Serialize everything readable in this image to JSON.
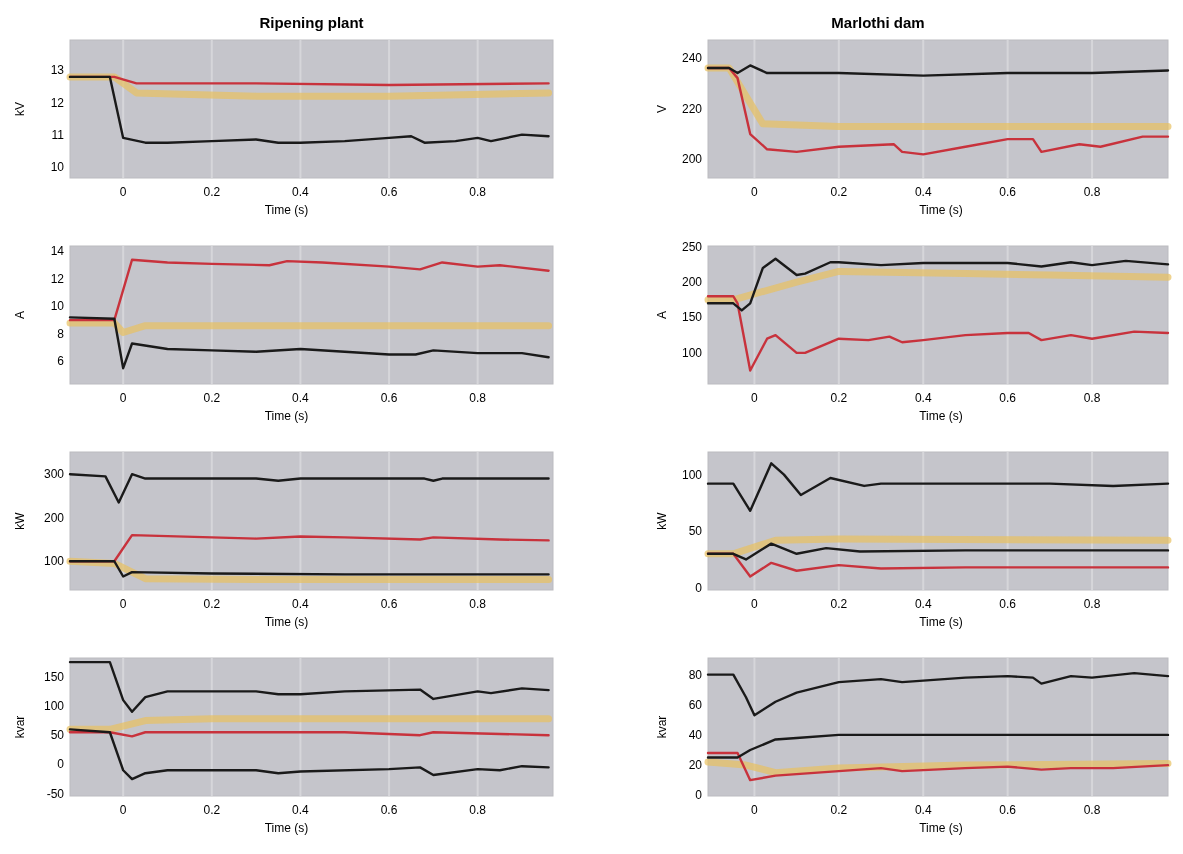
{
  "chart_data": [
    {
      "type": "line",
      "title": "Ripening plant",
      "xlabel": "Time (s)",
      "ylabel": "kV",
      "xlim": [
        -0.12,
        0.97
      ],
      "xticks": [
        0,
        0.2,
        0.4,
        0.6,
        0.8
      ],
      "ylim": [
        9.65,
        13.95
      ],
      "yticks": [
        10,
        11,
        12,
        13
      ],
      "grid": "x",
      "series": [
        {
          "color": "#e8c060",
          "x": [
            -0.12,
            -0.02,
            0.03,
            0.3,
            0.6,
            0.96
          ],
          "values": [
            12.8,
            12.8,
            12.3,
            12.2,
            12.2,
            12.3
          ]
        },
        {
          "color": "#c8323c",
          "x": [
            -0.12,
            -0.02,
            0.03,
            0.3,
            0.6,
            0.96
          ],
          "values": [
            12.8,
            12.8,
            12.6,
            12.6,
            12.55,
            12.6
          ]
        },
        {
          "color": "#1a1a1a",
          "x": [
            -0.12,
            -0.03,
            0,
            0.05,
            0.1,
            0.2,
            0.3,
            0.35,
            0.4,
            0.5,
            0.6,
            0.65,
            0.68,
            0.75,
            0.8,
            0.83,
            0.9,
            0.96
          ],
          "values": [
            12.8,
            12.8,
            10.9,
            10.75,
            10.75,
            10.8,
            10.85,
            10.75,
            10.75,
            10.8,
            10.9,
            10.95,
            10.75,
            10.8,
            10.9,
            10.8,
            11.0,
            10.95
          ]
        }
      ]
    },
    {
      "type": "line",
      "title": "Marlothi dam",
      "xlabel": "Time (s)",
      "ylabel": "V",
      "xlim": [
        -0.11,
        0.98
      ],
      "xticks": [
        0,
        0.2,
        0.4,
        0.6,
        0.8
      ],
      "ylim": [
        192.7,
        247
      ],
      "yticks": [
        200,
        220,
        240
      ],
      "grid": "x",
      "series": [
        {
          "color": "#e8c060",
          "x": [
            -0.11,
            -0.06,
            0.02,
            0.2,
            0.98
          ],
          "values": [
            236,
            236,
            214,
            213,
            213
          ]
        },
        {
          "color": "#c8323c",
          "x": [
            -0.11,
            -0.06,
            -0.04,
            -0.01,
            0.03,
            0.1,
            0.2,
            0.33,
            0.35,
            0.4,
            0.5,
            0.6,
            0.66,
            0.68,
            0.77,
            0.82,
            0.92,
            0.98
          ],
          "values": [
            236,
            236,
            232,
            210,
            204,
            203,
            205,
            206,
            203,
            202,
            205,
            208,
            208,
            203,
            206,
            205,
            209,
            209
          ]
        },
        {
          "color": "#1a1a1a",
          "x": [
            -0.11,
            -0.06,
            -0.04,
            -0.01,
            0.03,
            0.2,
            0.4,
            0.6,
            0.8,
            0.98
          ],
          "values": [
            236,
            236,
            234,
            237,
            234,
            234,
            233,
            234,
            234,
            235
          ]
        }
      ]
    },
    {
      "type": "line",
      "xlabel": "Time (s)",
      "ylabel": "A",
      "xlim": [
        -0.12,
        0.97
      ],
      "xticks": [
        0,
        0.2,
        0.4,
        0.6,
        0.8
      ],
      "ylim": [
        4.35,
        14.4
      ],
      "yticks": [
        6,
        8,
        10,
        12,
        14
      ],
      "grid": "x",
      "series": [
        {
          "color": "#e8c060",
          "x": [
            -0.12,
            -0.02,
            0,
            0.05,
            0.5,
            0.96
          ],
          "values": [
            8.8,
            8.8,
            8.1,
            8.6,
            8.6,
            8.6
          ]
        },
        {
          "color": "#c8323c",
          "x": [
            -0.12,
            -0.02,
            0.02,
            0.1,
            0.2,
            0.33,
            0.37,
            0.45,
            0.6,
            0.67,
            0.72,
            0.8,
            0.85,
            0.96
          ],
          "values": [
            9.0,
            9.0,
            13.4,
            13.2,
            13.1,
            13.0,
            13.3,
            13.2,
            12.9,
            12.7,
            13.2,
            12.9,
            13.0,
            12.6
          ]
        },
        {
          "color": "#1a1a1a",
          "x": [
            -0.12,
            -0.02,
            0,
            0.02,
            0.1,
            0.2,
            0.3,
            0.4,
            0.5,
            0.6,
            0.66,
            0.7,
            0.8,
            0.9,
            0.96
          ],
          "values": [
            9.2,
            9.1,
            5.5,
            7.3,
            6.9,
            6.8,
            6.7,
            6.9,
            6.7,
            6.5,
            6.5,
            6.8,
            6.6,
            6.6,
            6.3
          ]
        }
      ]
    },
    {
      "type": "line",
      "xlabel": "Time (s)",
      "ylabel": "A",
      "xlim": [
        -0.11,
        0.98
      ],
      "xticks": [
        0,
        0.2,
        0.4,
        0.6,
        0.8
      ],
      "ylim": [
        56,
        251
      ],
      "yticks": [
        100,
        150,
        200,
        250
      ],
      "grid": "x",
      "series": [
        {
          "color": "#e8c060",
          "x": [
            -0.11,
            -0.05,
            0.1,
            0.2,
            0.5,
            0.7,
            0.98
          ],
          "values": [
            175,
            175,
            200,
            215,
            212,
            210,
            207
          ]
        },
        {
          "color": "#c8323c",
          "x": [
            -0.11,
            -0.05,
            -0.04,
            -0.01,
            0.03,
            0.05,
            0.1,
            0.12,
            0.2,
            0.27,
            0.32,
            0.35,
            0.4,
            0.5,
            0.6,
            0.65,
            0.68,
            0.75,
            0.8,
            0.9,
            0.98
          ],
          "values": [
            180,
            180,
            170,
            75,
            120,
            125,
            100,
            100,
            120,
            118,
            123,
            115,
            118,
            125,
            128,
            128,
            118,
            125,
            120,
            130,
            128
          ]
        },
        {
          "color": "#1a1a1a",
          "x": [
            -0.11,
            -0.05,
            -0.03,
            -0.01,
            0.02,
            0.05,
            0.1,
            0.12,
            0.18,
            0.2,
            0.3,
            0.4,
            0.6,
            0.68,
            0.75,
            0.8,
            0.88,
            0.98
          ],
          "values": [
            170,
            170,
            160,
            170,
            220,
            233,
            210,
            212,
            228,
            228,
            224,
            227,
            227,
            222,
            228,
            224,
            230,
            225
          ]
        }
      ]
    },
    {
      "type": "line",
      "xlabel": "Time (s)",
      "ylabel": "kW",
      "xlim": [
        -0.12,
        0.97
      ],
      "xticks": [
        0,
        0.2,
        0.4,
        0.6,
        0.8
      ],
      "ylim": [
        34,
        351
      ],
      "yticks": [
        100,
        200,
        300
      ],
      "grid": "x",
      "series": [
        {
          "color": "#e8c060",
          "x": [
            -0.12,
            -0.02,
            0.05,
            0.3,
            0.96
          ],
          "values": [
            100,
            95,
            60,
            58,
            58
          ]
        },
        {
          "color": "#c8323c",
          "x": [
            -0.12,
            -0.02,
            0.02,
            0.2,
            0.3,
            0.4,
            0.5,
            0.67,
            0.7,
            0.85,
            0.96
          ],
          "values": [
            100,
            100,
            160,
            155,
            152,
            157,
            155,
            150,
            155,
            150,
            148
          ]
        },
        {
          "color": "#1a1a1a",
          "x": [
            -0.12,
            -0.04,
            -0.01,
            0.02,
            0.05,
            0.3,
            0.35,
            0.4,
            0.68,
            0.7,
            0.72,
            0.96
          ],
          "values": [
            300,
            295,
            235,
            300,
            290,
            290,
            285,
            290,
            290,
            285,
            290,
            290
          ]
        },
        {
          "color": "#1a1a1a",
          "x": [
            -0.12,
            -0.02,
            0,
            0.02,
            0.2,
            0.5,
            0.96
          ],
          "values": [
            100,
            100,
            65,
            75,
            72,
            70,
            70
          ]
        }
      ]
    },
    {
      "type": "line",
      "xlabel": "Time (s)",
      "ylabel": "kW",
      "xlim": [
        -0.11,
        0.98
      ],
      "xticks": [
        0,
        0.2,
        0.4,
        0.6,
        0.8
      ],
      "ylim": [
        -2,
        120
      ],
      "yticks": [
        0,
        50,
        100
      ],
      "grid": "x",
      "series": [
        {
          "color": "#e8c060",
          "x": [
            -0.11,
            -0.05,
            0.05,
            0.2,
            0.98
          ],
          "values": [
            30,
            30,
            42,
            43,
            42
          ]
        },
        {
          "color": "#c8323c",
          "x": [
            -0.11,
            -0.05,
            -0.01,
            0.04,
            0.1,
            0.2,
            0.3,
            0.5,
            0.7,
            0.98
          ],
          "values": [
            30,
            30,
            10,
            22,
            15,
            20,
            17,
            18,
            18,
            18
          ]
        },
        {
          "color": "#1a1a1a",
          "x": [
            -0.11,
            -0.05,
            -0.01,
            0.04,
            0.07,
            0.11,
            0.18,
            0.26,
            0.3,
            0.5,
            0.7,
            0.85,
            0.98
          ],
          "values": [
            92,
            92,
            68,
            110,
            100,
            82,
            97,
            90,
            92,
            92,
            92,
            90,
            92
          ]
        },
        {
          "color": "#1a1a1a",
          "x": [
            -0.11,
            -0.05,
            -0.02,
            0.01,
            0.04,
            0.1,
            0.17,
            0.25,
            0.5,
            0.98
          ],
          "values": [
            30,
            30,
            25,
            32,
            39,
            30,
            35,
            32,
            33,
            33
          ]
        }
      ]
    },
    {
      "type": "line",
      "xlabel": "Time (s)",
      "ylabel": "kvar",
      "xlim": [
        -0.12,
        0.97
      ],
      "xticks": [
        0,
        0.2,
        0.4,
        0.6,
        0.8
      ],
      "ylim": [
        -54,
        182
      ],
      "yticks": [
        -50,
        0,
        50,
        100,
        150
      ],
      "grid": "x",
      "series": [
        {
          "color": "#e8c060",
          "x": [
            -0.12,
            -0.03,
            0.05,
            0.2,
            0.96
          ],
          "values": [
            60,
            60,
            75,
            78,
            78
          ]
        },
        {
          "color": "#c8323c",
          "x": [
            -0.12,
            -0.03,
            0.02,
            0.05,
            0.5,
            0.67,
            0.7,
            0.96
          ],
          "values": [
            55,
            55,
            48,
            55,
            55,
            50,
            55,
            50
          ]
        },
        {
          "color": "#1a1a1a",
          "x": [
            -0.12,
            -0.03,
            0,
            0.02,
            0.05,
            0.1,
            0.3,
            0.35,
            0.4,
            0.5,
            0.67,
            0.7,
            0.8,
            0.83,
            0.9,
            0.96
          ],
          "values": [
            175,
            175,
            110,
            90,
            115,
            125,
            125,
            120,
            120,
            125,
            128,
            112,
            125,
            122,
            130,
            127
          ]
        },
        {
          "color": "#1a1a1a",
          "x": [
            -0.12,
            -0.03,
            0,
            0.02,
            0.05,
            0.1,
            0.3,
            0.35,
            0.4,
            0.6,
            0.67,
            0.7,
            0.8,
            0.85,
            0.9,
            0.96
          ],
          "values": [
            60,
            55,
            -10,
            -25,
            -15,
            -10,
            -10,
            -15,
            -12,
            -8,
            -5,
            -18,
            -8,
            -10,
            -3,
            -5
          ]
        }
      ]
    },
    {
      "type": "line",
      "xlabel": "Time (s)",
      "ylabel": "kvar",
      "xlim": [
        -0.11,
        0.98
      ],
      "xticks": [
        0,
        0.2,
        0.4,
        0.6,
        0.8
      ],
      "ylim": [
        -0.5,
        91
      ],
      "yticks": [
        0,
        20,
        40,
        60,
        80
      ],
      "grid": "x",
      "series": [
        {
          "color": "#e8c060",
          "x": [
            -0.11,
            -0.02,
            0.05,
            0.2,
            0.5,
            0.98
          ],
          "values": [
            22,
            20,
            15,
            18,
            20,
            21
          ]
        },
        {
          "color": "#c8323c",
          "x": [
            -0.11,
            -0.04,
            -0.01,
            0.05,
            0.2,
            0.3,
            0.35,
            0.5,
            0.6,
            0.68,
            0.75,
            0.85,
            0.98
          ],
          "values": [
            28,
            28,
            10,
            13,
            16,
            18,
            16,
            18,
            19,
            17,
            18,
            18,
            20
          ]
        },
        {
          "color": "#1a1a1a",
          "x": [
            -0.11,
            -0.05,
            -0.02,
            0,
            0.05,
            0.1,
            0.2,
            0.3,
            0.35,
            0.5,
            0.6,
            0.66,
            0.68,
            0.75,
            0.8,
            0.9,
            0.98
          ],
          "values": [
            80,
            80,
            65,
            53,
            62,
            68,
            75,
            77,
            75,
            78,
            79,
            78,
            74,
            79,
            78,
            81,
            79
          ]
        },
        {
          "color": "#1a1a1a",
          "x": [
            -0.11,
            -0.04,
            -0.01,
            0.05,
            0.1,
            0.2,
            0.98
          ],
          "values": [
            25,
            25,
            30,
            37,
            38,
            40,
            40
          ]
        }
      ]
    }
  ]
}
